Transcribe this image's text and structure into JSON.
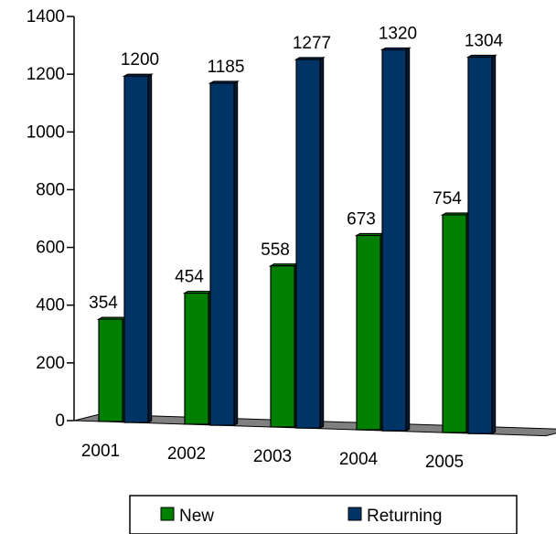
{
  "chart_data": {
    "type": "bar",
    "categories": [
      "2001",
      "2002",
      "2003",
      "2004",
      "2005"
    ],
    "series": [
      {
        "name": "New",
        "values": [
          354,
          454,
          558,
          673,
          754
        ],
        "data_labels": [
          "354",
          "454",
          "558",
          "673",
          "754"
        ],
        "color": "#008000"
      },
      {
        "name": "Returning",
        "values": [
          1200,
          1185,
          1277,
          1320,
          1304
        ],
        "data_labels": [
          "1200",
          "1185",
          "1277",
          "1320",
          "1304"
        ],
        "color": "#003366"
      }
    ],
    "ylim": [
      0,
      1400
    ],
    "y_ticks": [
      0,
      200,
      400,
      600,
      800,
      1000,
      1200,
      1400
    ],
    "y_tick_labels": [
      "0",
      "200",
      "400",
      "600",
      "800",
      "1000",
      "1200",
      "1400"
    ],
    "grid": false,
    "legend_position": "bottom",
    "style": "3d-clustered-column",
    "floor_color": "#808080"
  }
}
